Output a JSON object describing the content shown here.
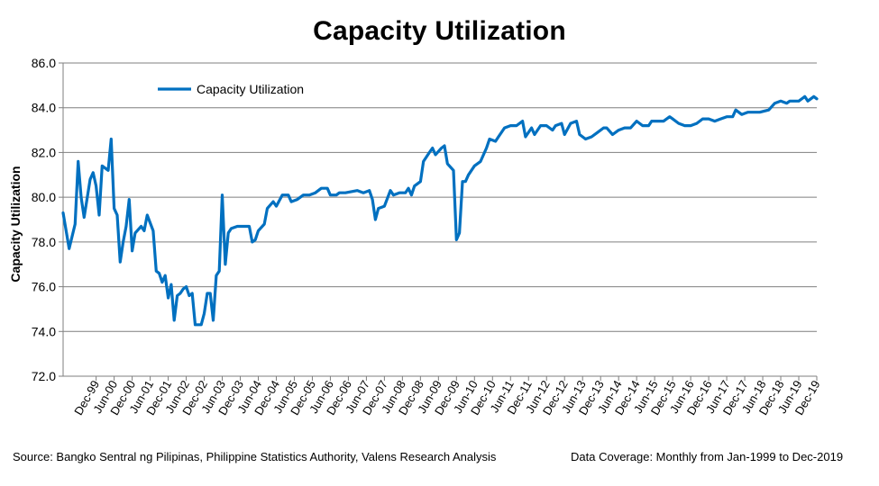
{
  "chart_data": {
    "type": "line",
    "title": "Capacity Utilization",
    "ylabel": "Capacity Utilization",
    "xlabel": "",
    "ylim": [
      72.0,
      86.0
    ],
    "y_ticks": [
      "72.0",
      "74.0",
      "76.0",
      "78.0",
      "80.0",
      "82.0",
      "84.0",
      "86.0"
    ],
    "grid": true,
    "legend": "top-left",
    "x_ticks": [
      "Dec-99",
      "Jun-00",
      "Dec-00",
      "Jun-01",
      "Dec-01",
      "Jun-02",
      "Dec-02",
      "Jun-03",
      "Dec-03",
      "Jun-04",
      "Dec-04",
      "Jun-05",
      "Dec-05",
      "Jun-06",
      "Dec-06",
      "Jun-07",
      "Dec-07",
      "Jun-08",
      "Dec-08",
      "Jun-09",
      "Dec-09",
      "Jun-10",
      "Dec-10",
      "Jun-11",
      "Dec-11",
      "Jun-12",
      "Dec-12",
      "Jun-13",
      "Dec-13",
      "Jun-14",
      "Dec-14",
      "Jun-15",
      "Dec-15",
      "Jun-16",
      "Dec-16",
      "Jun-17",
      "Dec-17",
      "Jun-18",
      "Dec-18",
      "Jun-19",
      "Dec-19"
    ],
    "x_start": "Jan-1999",
    "x_end": "Dec-2019",
    "series": [
      {
        "name": "Capacity Utilization",
        "color": "#0070C0",
        "points": [
          [
            "Jan-1999",
            79.3
          ],
          [
            "Mar-1999",
            77.7
          ],
          [
            "May-1999",
            78.8
          ],
          [
            "Jun-1999",
            81.6
          ],
          [
            "Jul-1999",
            80.0
          ],
          [
            "Aug-1999",
            79.1
          ],
          [
            "Oct-1999",
            80.8
          ],
          [
            "Nov-1999",
            81.1
          ],
          [
            "Dec-1999",
            80.5
          ],
          [
            "Jan-2000",
            79.2
          ],
          [
            "Feb-2000",
            81.4
          ],
          [
            "Apr-2000",
            81.2
          ],
          [
            "May-2000",
            82.6
          ],
          [
            "Jun-2000",
            79.5
          ],
          [
            "Jul-2000",
            79.2
          ],
          [
            "Aug-2000",
            77.1
          ],
          [
            "Sep-2000",
            78.0
          ],
          [
            "Oct-2000",
            78.7
          ],
          [
            "Nov-2000",
            79.9
          ],
          [
            "Dec-2000",
            77.6
          ],
          [
            "Jan-2001",
            78.4
          ],
          [
            "Mar-2001",
            78.7
          ],
          [
            "Apr-2001",
            78.5
          ],
          [
            "May-2001",
            79.2
          ],
          [
            "Jul-2001",
            78.5
          ],
          [
            "Aug-2001",
            76.7
          ],
          [
            "Sep-2001",
            76.6
          ],
          [
            "Oct-2001",
            76.2
          ],
          [
            "Nov-2001",
            76.5
          ],
          [
            "Dec-2001",
            75.5
          ],
          [
            "Jan-2002",
            76.1
          ],
          [
            "Feb-2002",
            74.5
          ],
          [
            "Mar-2002",
            75.6
          ],
          [
            "Apr-2002",
            75.7
          ],
          [
            "May-2002",
            75.9
          ],
          [
            "Jun-2002",
            76.0
          ],
          [
            "Jul-2002",
            75.6
          ],
          [
            "Aug-2002",
            75.7
          ],
          [
            "Sep-2002",
            74.3
          ],
          [
            "Oct-2002",
            74.3
          ],
          [
            "Nov-2002",
            74.3
          ],
          [
            "Dec-2002",
            74.8
          ],
          [
            "Jan-2003",
            75.7
          ],
          [
            "Feb-2003",
            75.7
          ],
          [
            "Mar-2003",
            74.5
          ],
          [
            "Apr-2003",
            76.5
          ],
          [
            "May-2003",
            76.7
          ],
          [
            "Jun-2003",
            80.1
          ],
          [
            "Jul-2003",
            77.0
          ],
          [
            "Aug-2003",
            78.4
          ],
          [
            "Sep-2003",
            78.6
          ],
          [
            "Nov-2003",
            78.7
          ],
          [
            "Mar-2004",
            78.7
          ],
          [
            "Apr-2004",
            78.0
          ],
          [
            "May-2004",
            78.1
          ],
          [
            "Jun-2004",
            78.5
          ],
          [
            "Aug-2004",
            78.8
          ],
          [
            "Sep-2004",
            79.5
          ],
          [
            "Nov-2004",
            79.8
          ],
          [
            "Dec-2004",
            79.6
          ],
          [
            "Feb-2005",
            80.1
          ],
          [
            "Apr-2005",
            80.1
          ],
          [
            "May-2005",
            79.8
          ],
          [
            "Jul-2005",
            79.9
          ],
          [
            "Sep-2005",
            80.1
          ],
          [
            "Nov-2005",
            80.1
          ],
          [
            "Jan-2006",
            80.2
          ],
          [
            "Mar-2006",
            80.4
          ],
          [
            "May-2006",
            80.4
          ],
          [
            "Jun-2006",
            80.1
          ],
          [
            "Aug-2006",
            80.1
          ],
          [
            "Sep-2006",
            80.2
          ],
          [
            "Nov-2006",
            80.2
          ],
          [
            "Mar-2007",
            80.3
          ],
          [
            "May-2007",
            80.2
          ],
          [
            "Jul-2007",
            80.3
          ],
          [
            "Aug-2007",
            79.9
          ],
          [
            "Sep-2007",
            79.0
          ],
          [
            "Oct-2007",
            79.5
          ],
          [
            "Dec-2007",
            79.6
          ],
          [
            "Feb-2008",
            80.3
          ],
          [
            "Mar-2008",
            80.1
          ],
          [
            "May-2008",
            80.2
          ],
          [
            "Jul-2008",
            80.2
          ],
          [
            "Aug-2008",
            80.4
          ],
          [
            "Sep-2008",
            80.1
          ],
          [
            "Oct-2008",
            80.5
          ],
          [
            "Dec-2008",
            80.7
          ],
          [
            "Jan-2009",
            81.6
          ],
          [
            "Mar-2009",
            82.0
          ],
          [
            "Apr-2009",
            82.2
          ],
          [
            "May-2009",
            81.9
          ],
          [
            "Jul-2009",
            82.2
          ],
          [
            "Aug-2009",
            82.3
          ],
          [
            "Sep-2009",
            81.5
          ],
          [
            "Nov-2009",
            81.2
          ],
          [
            "Dec-2009",
            78.1
          ],
          [
            "Jan-2010",
            78.4
          ],
          [
            "Feb-2010",
            80.7
          ],
          [
            "Mar-2010",
            80.7
          ],
          [
            "Apr-2010",
            81.0
          ],
          [
            "Jun-2010",
            81.4
          ],
          [
            "Aug-2010",
            81.6
          ],
          [
            "Oct-2010",
            82.2
          ],
          [
            "Nov-2010",
            82.6
          ],
          [
            "Jan-2011",
            82.5
          ],
          [
            "Feb-2011",
            82.7
          ],
          [
            "Apr-2011",
            83.1
          ],
          [
            "Jun-2011",
            83.2
          ],
          [
            "Aug-2011",
            83.2
          ],
          [
            "Oct-2011",
            83.4
          ],
          [
            "Nov-2011",
            82.7
          ],
          [
            "Jan-2012",
            83.1
          ],
          [
            "Feb-2012",
            82.8
          ],
          [
            "Apr-2012",
            83.2
          ],
          [
            "Jun-2012",
            83.2
          ],
          [
            "Aug-2012",
            83.0
          ],
          [
            "Sep-2012",
            83.2
          ],
          [
            "Nov-2012",
            83.3
          ],
          [
            "Dec-2012",
            82.8
          ],
          [
            "Feb-2013",
            83.3
          ],
          [
            "Apr-2013",
            83.4
          ],
          [
            "May-2013",
            82.8
          ],
          [
            "Jul-2013",
            82.6
          ],
          [
            "Sep-2013",
            82.7
          ],
          [
            "Nov-2013",
            82.9
          ],
          [
            "Jan-2014",
            83.1
          ],
          [
            "Feb-2014",
            83.1
          ],
          [
            "Apr-2014",
            82.8
          ],
          [
            "Jun-2014",
            83.0
          ],
          [
            "Aug-2014",
            83.1
          ],
          [
            "Oct-2014",
            83.1
          ],
          [
            "Dec-2014",
            83.4
          ],
          [
            "Feb-2015",
            83.2
          ],
          [
            "Apr-2015",
            83.2
          ],
          [
            "May-2015",
            83.4
          ],
          [
            "Jul-2015",
            83.4
          ],
          [
            "Sep-2015",
            83.4
          ],
          [
            "Nov-2015",
            83.6
          ],
          [
            "Dec-2015",
            83.5
          ],
          [
            "Feb-2016",
            83.3
          ],
          [
            "Apr-2016",
            83.2
          ],
          [
            "Jun-2016",
            83.2
          ],
          [
            "Aug-2016",
            83.3
          ],
          [
            "Oct-2016",
            83.5
          ],
          [
            "Dec-2016",
            83.5
          ],
          [
            "Feb-2017",
            83.4
          ],
          [
            "Apr-2017",
            83.5
          ],
          [
            "Jun-2017",
            83.6
          ],
          [
            "Aug-2017",
            83.6
          ],
          [
            "Sep-2017",
            83.9
          ],
          [
            "Nov-2017",
            83.7
          ],
          [
            "Jan-2018",
            83.8
          ],
          [
            "Mar-2018",
            83.8
          ],
          [
            "May-2018",
            83.8
          ],
          [
            "Aug-2018",
            83.9
          ],
          [
            "Oct-2018",
            84.2
          ],
          [
            "Dec-2018",
            84.3
          ],
          [
            "Feb-2019",
            84.2
          ],
          [
            "Mar-2019",
            84.3
          ],
          [
            "Apr-2019",
            84.3
          ],
          [
            "Jun-2019",
            84.3
          ],
          [
            "Aug-2019",
            84.5
          ],
          [
            "Sep-2019",
            84.3
          ],
          [
            "Nov-2019",
            84.5
          ],
          [
            "Dec-2019",
            84.4
          ]
        ]
      }
    ]
  },
  "notes": {
    "source": "Source: Bangko Sentral ng Pilipinas, Philippine Statistics Authority, Valens Research Analysis",
    "coverage": "Data Coverage: Monthly from Jan-1999 to Dec-2019"
  }
}
